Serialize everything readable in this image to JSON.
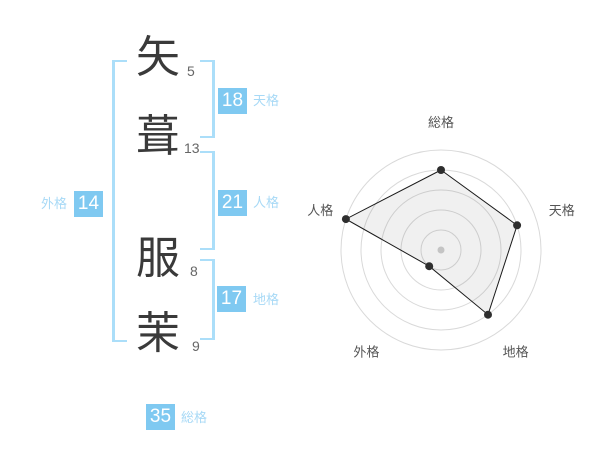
{
  "page": {
    "background": "#ffffff"
  },
  "name_panel": {
    "accent_color": "#7fc9f1",
    "label_color": "#a7d9f6",
    "bracket_color": "#abdef9",
    "characters": [
      {
        "char": "矢",
        "strokes": "5"
      },
      {
        "char": "葺",
        "strokes": "13"
      },
      {
        "char": "服",
        "strokes": "8"
      },
      {
        "char": "茉",
        "strokes": "9"
      }
    ],
    "badges": [
      {
        "id": "tenkaku",
        "value": "18",
        "label": "天格"
      },
      {
        "id": "jinkaku",
        "value": "21",
        "label": "人格"
      },
      {
        "id": "chikaku",
        "value": "17",
        "label": "地格"
      },
      {
        "id": "gaikaku",
        "value": "14",
        "label": "外格"
      },
      {
        "id": "soukaku",
        "value": "35",
        "label": "総格"
      }
    ]
  },
  "chart_data": {
    "type": "radar",
    "title": "",
    "axes": [
      "総格",
      "天格",
      "地格",
      "外格",
      "人格"
    ],
    "values": [
      4,
      4,
      4,
      1,
      5
    ],
    "max": 5,
    "rings": 5,
    "start_angle_deg": -90,
    "clockwise": true,
    "grid": "circular",
    "legend": false,
    "colors": {
      "grid": "#d9d9d9",
      "line": "#1a1a1a",
      "fill": "rgba(110,110,110,0.10)",
      "dot": "#2e2e2e",
      "center_dot": "#c4c4c4",
      "label": "#555555"
    }
  }
}
